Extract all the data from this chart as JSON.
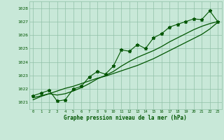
{
  "title": "Graphe pression niveau de la mer (hPa)",
  "hours": [
    0,
    1,
    2,
    3,
    4,
    5,
    6,
    7,
    8,
    9,
    10,
    11,
    12,
    13,
    14,
    15,
    16,
    17,
    18,
    19,
    20,
    21,
    22,
    23
  ],
  "pressure_jagged": [
    1021.5,
    1021.7,
    1021.9,
    1021.1,
    1021.2,
    1022.0,
    1022.2,
    1022.9,
    1023.3,
    1023.1,
    1023.7,
    1024.9,
    1024.8,
    1025.3,
    1025.0,
    1025.8,
    1026.1,
    1026.6,
    1026.8,
    1027.0,
    1027.2,
    1027.15,
    1027.8,
    1027.0
  ],
  "pressure_smooth": [
    1021.35,
    1021.5,
    1021.65,
    1021.55,
    1021.65,
    1021.85,
    1022.1,
    1022.4,
    1022.75,
    1023.0,
    1023.3,
    1023.7,
    1024.05,
    1024.35,
    1024.6,
    1024.85,
    1025.15,
    1025.5,
    1025.8,
    1026.1,
    1026.4,
    1026.65,
    1026.85,
    1027.0
  ],
  "pressure_trend": [
    1021.2,
    1021.45,
    1021.65,
    1021.85,
    1022.05,
    1022.2,
    1022.4,
    1022.6,
    1022.8,
    1022.95,
    1023.15,
    1023.35,
    1023.55,
    1023.75,
    1024.0,
    1024.25,
    1024.55,
    1024.85,
    1025.15,
    1025.45,
    1025.75,
    1026.05,
    1026.45,
    1026.95
  ],
  "bg_color": "#c8e8d8",
  "grid_color": "#90c0a8",
  "line_color": "#005500",
  "text_color": "#005500",
  "ylim": [
    1020.5,
    1028.5
  ],
  "yticks": [
    1021,
    1022,
    1023,
    1024,
    1025,
    1026,
    1027,
    1028
  ]
}
